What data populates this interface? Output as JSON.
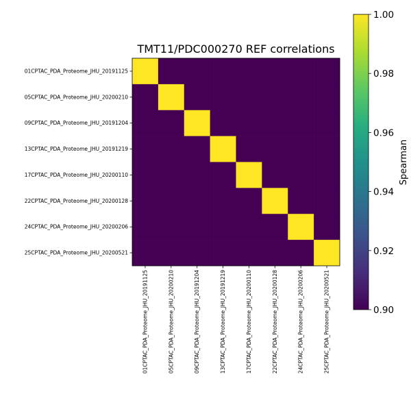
{
  "chart_data": {
    "type": "heatmap",
    "title": "TMT11/PDC000270 REF correlations",
    "rows": [
      "01CPTAC_PDA_Proteome_JHU_20191125",
      "05CPTAC_PDA_Proteome_JHU_20200210",
      "09CPTAC_PDA_Proteome_JHU_20191204",
      "13CPTAC_PDA_Proteome_JHU_20191219",
      "17CPTAC_PDA_Proteome_JHU_20200110",
      "22CPTAC_PDA_Proteome_JHU_20200128",
      "24CPTAC_PDA_Proteome_JHU_20200206",
      "25CPTAC_PDA_Proteome_JHU_20200521"
    ],
    "columns": [
      "01CPTAC_PDA_Proteome_JHU_20191125",
      "05CPTAC_PDA_Proteome_JHU_20200210",
      "09CPTAC_PDA_Proteome_JHU_20191204",
      "13CPTAC_PDA_Proteome_JHU_20191219",
      "17CPTAC_PDA_Proteome_JHU_20200110",
      "22CPTAC_PDA_Proteome_JHU_20200128",
      "24CPTAC_PDA_Proteome_JHU_20200206",
      "25CPTAC_PDA_Proteome_JHU_20200521"
    ],
    "values": [
      [
        1.0,
        0.9,
        0.9,
        0.9,
        0.9,
        0.9,
        0.9,
        0.9
      ],
      [
        0.9,
        1.0,
        0.9,
        0.9,
        0.9,
        0.9,
        0.9,
        0.9
      ],
      [
        0.9,
        0.9,
        1.0,
        0.9,
        0.9,
        0.9,
        0.9,
        0.9
      ],
      [
        0.9,
        0.9,
        0.9,
        1.0,
        0.9,
        0.9,
        0.9,
        0.9
      ],
      [
        0.9,
        0.9,
        0.9,
        0.9,
        1.0,
        0.9,
        0.9,
        0.9
      ],
      [
        0.9,
        0.9,
        0.9,
        0.9,
        0.9,
        1.0,
        0.9,
        0.9
      ],
      [
        0.9,
        0.9,
        0.9,
        0.9,
        0.9,
        0.9,
        1.0,
        0.9
      ],
      [
        0.9,
        0.9,
        0.9,
        0.9,
        0.9,
        0.9,
        0.9,
        1.0
      ]
    ],
    "colormap": "viridis",
    "vmin": 0.9,
    "vmax": 1.0,
    "colorbar": {
      "label": "Spearman",
      "ticks": [
        "0.90",
        "0.92",
        "0.94",
        "0.96",
        "0.98",
        "1.00"
      ],
      "tick_values": [
        0.9,
        0.92,
        0.94,
        0.96,
        0.98,
        1.0
      ],
      "placement": "right"
    },
    "grid": false
  }
}
